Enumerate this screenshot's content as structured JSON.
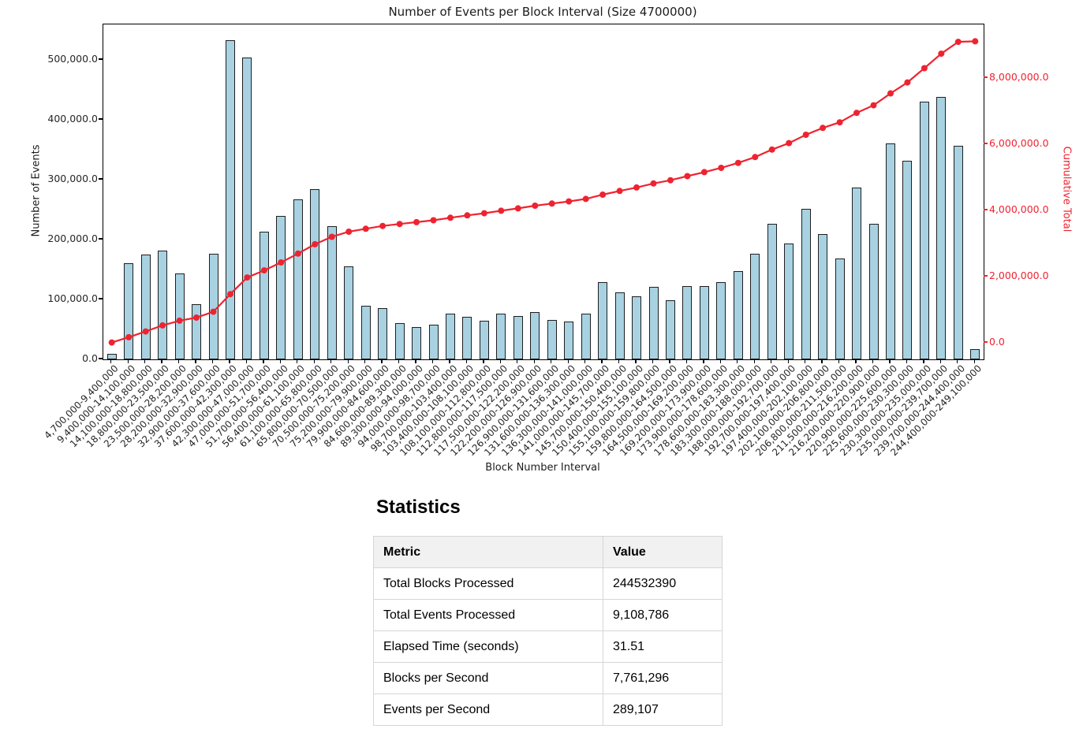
{
  "chart_data": {
    "type": "bar",
    "title": "Number of Events per Block Interval (Size 4700000)",
    "xlabel": "Block Number Interval",
    "ylabel": "Number of Events",
    "ylabel2": "Cumulative Total",
    "grid": false,
    "legend": null,
    "ylim_left": [
      0,
      560000
    ],
    "ylim_right": [
      -523000,
      9630000
    ],
    "yticks_left": [
      [
        0,
        "0.0"
      ],
      [
        100000,
        "100,000.0"
      ],
      [
        200000,
        "200,000.0"
      ],
      [
        300000,
        "300,000.0"
      ],
      [
        400000,
        "400,000.0"
      ],
      [
        500000,
        "500,000.0"
      ]
    ],
    "yticks_right": [
      [
        0,
        "0.0"
      ],
      [
        2000000,
        "2,000,000.0"
      ],
      [
        4000000,
        "4,000,000.0"
      ],
      [
        6000000,
        "6,000,000.0"
      ],
      [
        8000000,
        "8,000,000.0"
      ]
    ],
    "categories": [
      "4,700,000-9,400,000",
      "9,400,000-14,100,000",
      "14,100,000-18,800,000",
      "18,800,000-23,500,000",
      "23,500,000-28,200,000",
      "28,200,000-32,900,000",
      "32,900,000-37,600,000",
      "37,600,000-42,300,000",
      "42,300,000-47,000,000",
      "47,000,000-51,700,000",
      "51,700,000-56,400,000",
      "56,400,000-61,100,000",
      "61,100,000-65,800,000",
      "65,800,000-70,500,000",
      "70,500,000-75,200,000",
      "75,200,000-79,900,000",
      "79,900,000-84,600,000",
      "84,600,000-89,300,000",
      "89,300,000-94,000,000",
      "94,000,000-98,700,000",
      "98,700,000-103,400,000",
      "103,400,000-108,100,000",
      "108,100,000-112,800,000",
      "112,800,000-117,500,000",
      "117,500,000-122,200,000",
      "122,200,000-126,900,000",
      "126,900,000-131,600,000",
      "131,600,000-136,300,000",
      "136,300,000-141,000,000",
      "141,000,000-145,700,000",
      "145,700,000-150,400,000",
      "150,400,000-155,100,000",
      "155,100,000-159,800,000",
      "159,800,000-164,500,000",
      "164,500,000-169,200,000",
      "169,200,000-173,900,000",
      "173,900,000-178,600,000",
      "178,600,000-183,300,000",
      "183,300,000-188,000,000",
      "188,000,000-192,700,000",
      "192,700,000-197,400,000",
      "197,400,000-202,100,000",
      "202,100,000-206,800,000",
      "206,800,000-211,500,000",
      "211,500,000-216,200,000",
      "216,200,000-220,900,000",
      "220,900,000-225,600,000",
      "225,600,000-230,300,000",
      "230,300,000-235,000,000",
      "235,000,000-239,700,000",
      "239,700,000-244,400,000",
      "244,400,000-249,100,000"
    ],
    "series": [
      {
        "name": "Number of Events",
        "type": "bar",
        "axis": "left",
        "values": [
          8786,
          160000,
          175000,
          182000,
          144000,
          92000,
          176000,
          533000,
          504000,
          213000,
          240000,
          267000,
          284000,
          223000,
          155000,
          89000,
          85000,
          60000,
          54000,
          58000,
          76000,
          71000,
          65000,
          76000,
          72000,
          79000,
          66000,
          63000,
          76000,
          129000,
          112000,
          105000,
          121000,
          99000,
          123000,
          122000,
          129000,
          148000,
          177000,
          227000,
          194000,
          252000,
          209000,
          168000,
          287000,
          227000,
          360000,
          331000,
          430000,
          438000,
          357000,
          17000
        ]
      },
      {
        "name": "Cumulative Total",
        "type": "line",
        "axis": "right",
        "values": [
          8786,
          168786,
          343786,
          525786,
          669786,
          761786,
          937786,
          1470786,
          1974786,
          2187786,
          2427786,
          2694786,
          2978786,
          3201786,
          3356786,
          3445786,
          3530786,
          3590786,
          3644786,
          3702786,
          3778786,
          3849786,
          3914786,
          3990786,
          4062786,
          4141786,
          4207786,
          4270786,
          4346786,
          4475786,
          4587786,
          4692786,
          4813786,
          4912786,
          5035786,
          5157786,
          5286786,
          5434786,
          5611786,
          5838786,
          6032786,
          6284786,
          6493786,
          6661786,
          6948786,
          7175786,
          7535786,
          7866786,
          8296786,
          8734786,
          9091786,
          9108786
        ]
      }
    ],
    "colors": {
      "bar_fill": "#a8d2e2",
      "bar_edge": "#1f1f1f",
      "line": "#ef2330",
      "right_axis_text": "#ef2330",
      "left_axis_text": "#262626"
    }
  },
  "statistics": {
    "heading": "Statistics",
    "columns": [
      "Metric",
      "Value"
    ],
    "rows": [
      [
        "Total Blocks Processed",
        "244532390"
      ],
      [
        "Total Events Processed",
        "9,108,786"
      ],
      [
        "Elapsed Time (seconds)",
        "31.51"
      ],
      [
        "Blocks per Second",
        "7,761,296"
      ],
      [
        "Events per Second",
        "289,107"
      ]
    ]
  }
}
